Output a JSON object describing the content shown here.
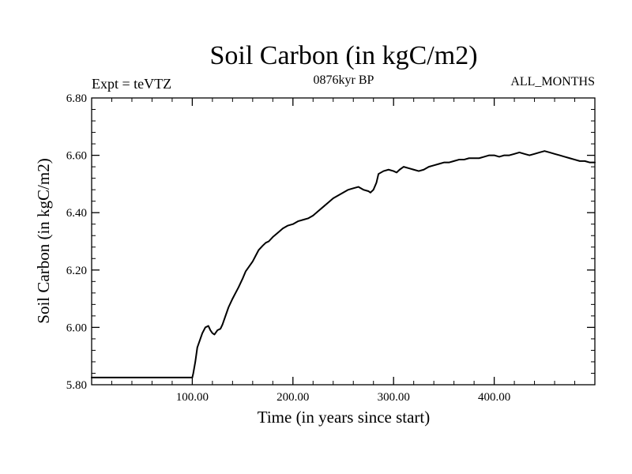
{
  "chart_data": {
    "type": "line",
    "title": "Soil Carbon (in kgC/m2)",
    "subtitle_left": "Expt = teVTZ",
    "subtitle_center": "0876kyr BP",
    "subtitle_right": "ALL_MONTHS",
    "xlabel": "Time (in years since start)",
    "ylabel": "Soil Carbon (in kgC/m2)",
    "xlim": [
      0,
      500
    ],
    "ylim": [
      5.8,
      6.8
    ],
    "x_ticks": [
      100,
      200,
      300,
      400
    ],
    "x_tick_labels": [
      "100.00",
      "200.00",
      "300.00",
      "400.00"
    ],
    "y_ticks": [
      5.8,
      6.0,
      6.2,
      6.4,
      6.6,
      6.8
    ],
    "y_tick_labels": [
      "5.80",
      "6.00",
      "6.20",
      "6.40",
      "6.60",
      "6.80"
    ],
    "series": [
      {
        "name": "Soil Carbon",
        "color": "#000000",
        "x": [
          0,
          100,
          101,
          103,
          105,
          108,
          110,
          113,
          116,
          118,
          120,
          122,
          125,
          128,
          130,
          133,
          136,
          140,
          143,
          146,
          150,
          153,
          156,
          160,
          163,
          166,
          170,
          173,
          176,
          180,
          185,
          190,
          195,
          200,
          205,
          210,
          215,
          220,
          225,
          230,
          235,
          240,
          245,
          250,
          255,
          260,
          265,
          270,
          275,
          277,
          280,
          283,
          285,
          290,
          295,
          300,
          303,
          306,
          310,
          315,
          320,
          325,
          330,
          335,
          340,
          345,
          350,
          355,
          360,
          365,
          370,
          375,
          380,
          385,
          390,
          395,
          400,
          405,
          410,
          415,
          420,
          425,
          430,
          435,
          440,
          445,
          450,
          455,
          460,
          465,
          470,
          475,
          480,
          485,
          490,
          495,
          500
        ],
        "y": [
          5.825,
          5.825,
          5.84,
          5.88,
          5.93,
          5.96,
          5.98,
          6.0,
          6.005,
          5.99,
          5.98,
          5.975,
          5.99,
          5.995,
          6.01,
          6.04,
          6.07,
          6.1,
          6.12,
          6.14,
          6.17,
          6.195,
          6.21,
          6.23,
          6.25,
          6.27,
          6.285,
          6.295,
          6.3,
          6.315,
          6.33,
          6.345,
          6.355,
          6.36,
          6.37,
          6.375,
          6.38,
          6.39,
          6.405,
          6.42,
          6.435,
          6.45,
          6.46,
          6.47,
          6.48,
          6.485,
          6.49,
          6.48,
          6.475,
          6.47,
          6.48,
          6.505,
          6.535,
          6.545,
          6.55,
          6.545,
          6.54,
          6.55,
          6.56,
          6.555,
          6.55,
          6.545,
          6.55,
          6.56,
          6.565,
          6.57,
          6.575,
          6.575,
          6.58,
          6.585,
          6.585,
          6.59,
          6.59,
          6.59,
          6.595,
          6.6,
          6.6,
          6.595,
          6.6,
          6.6,
          6.605,
          6.61,
          6.605,
          6.6,
          6.605,
          6.61,
          6.615,
          6.61,
          6.605,
          6.6,
          6.595,
          6.59,
          6.585,
          6.58,
          6.58,
          6.575,
          6.575
        ]
      }
    ]
  }
}
